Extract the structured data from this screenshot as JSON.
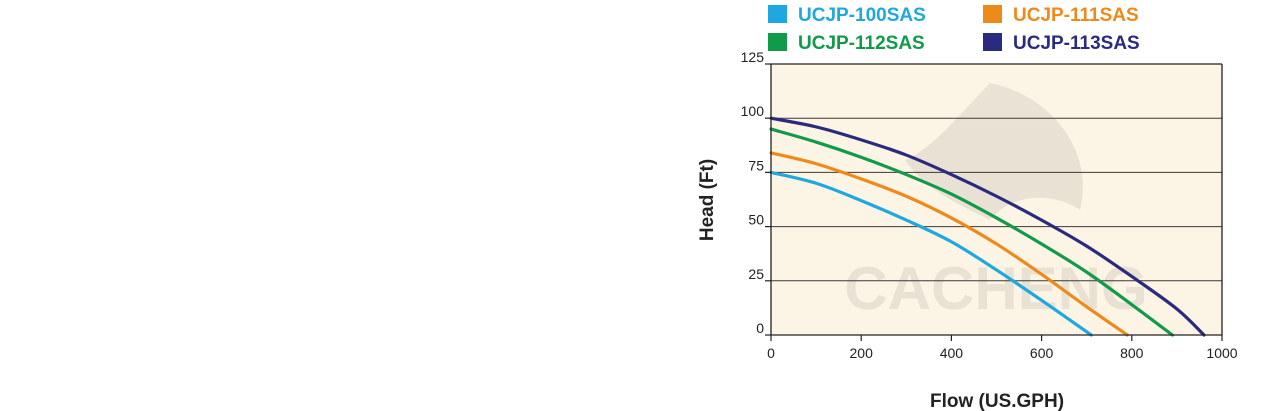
{
  "chart_data": {
    "type": "line",
    "xlabel": "Flow (US.GPH)",
    "ylabel": "Head (Ft)",
    "xlim": [
      0,
      1000
    ],
    "ylim": [
      0,
      125
    ],
    "xticks": [
      0,
      200,
      400,
      600,
      800,
      1000
    ],
    "yticks": [
      0,
      25,
      50,
      75,
      100,
      125
    ],
    "grid": "horizontal",
    "legend_position": "top",
    "background": "#fcf4e4",
    "watermark": "CACHENG",
    "series": [
      {
        "name": "UCJP-100SAS",
        "color": "#1ea7e1",
        "x": [
          0,
          100,
          200,
          300,
          400,
          500,
          600,
          710
        ],
        "y": [
          75,
          70,
          62,
          53,
          43,
          30,
          16,
          0
        ]
      },
      {
        "name": "UCJP-111SAS",
        "color": "#ee8a1a",
        "x": [
          0,
          100,
          200,
          300,
          400,
          500,
          600,
          700,
          790
        ],
        "y": [
          84,
          79,
          72,
          64,
          54,
          42,
          28,
          13,
          0
        ]
      },
      {
        "name": "UCJP-112SAS",
        "color": "#119a4a",
        "x": [
          0,
          100,
          200,
          300,
          400,
          500,
          600,
          700,
          800,
          890
        ],
        "y": [
          95,
          89,
          82,
          74,
          65,
          54,
          42,
          29,
          14,
          0
        ]
      },
      {
        "name": "UCJP-113SAS",
        "color": "#2a2b7e",
        "x": [
          0,
          100,
          200,
          300,
          400,
          500,
          600,
          700,
          800,
          900,
          960
        ],
        "y": [
          100,
          96,
          90,
          83,
          74,
          64,
          53,
          41,
          27,
          12,
          0
        ]
      }
    ]
  }
}
